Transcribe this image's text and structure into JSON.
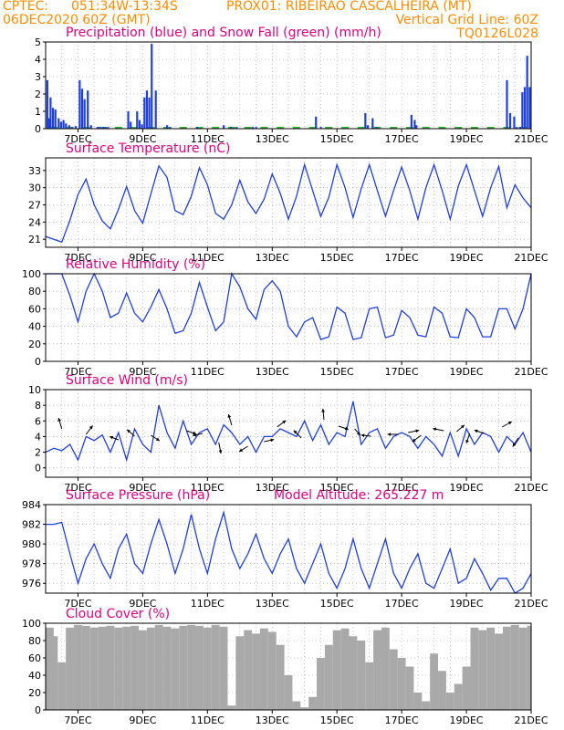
{
  "header": {
    "line1_left": "CPTEC:",
    "line1_coords": "051:34W-13:34S",
    "line1_station": "PROX01: RIBEIRAO CASCALHEIRA (MT)",
    "line2_left": "06DEC2020 60Z (GMT)",
    "line2_right": "Vertical Grid Line: 60Z",
    "line3_right": "TQ0126L028"
  },
  "colors": {
    "header": "#ff8c00",
    "title": "#e0007c",
    "line": "#1f3fe0",
    "snow": "#22aa22",
    "cloud": "#a9a9a9",
    "grid": "#999999"
  },
  "chart_data": [
    {
      "id": "precip",
      "type": "bar",
      "title": "Precipitation (blue) and Snow Fall (green) (mm/h)",
      "ylim": [
        0,
        5
      ],
      "yticks": [
        0,
        1,
        2,
        3,
        4,
        5
      ],
      "xticks": [
        "7DEC",
        "9DEC",
        "11DEC",
        "13DEC",
        "15DEC",
        "17DEC",
        "19DEC",
        "21DEC"
      ],
      "series": [
        {
          "name": "Precipitation",
          "color": "blue",
          "x": [
            0.1,
            0.2,
            0.3,
            0.45,
            0.6,
            0.8,
            0.95,
            1.1,
            1.25,
            1.45,
            1.65,
            1.85,
            2.1,
            2.25,
            2.4,
            2.6,
            2.8,
            3.2,
            3.35,
            3.55,
            3.7,
            3.85,
            5.1,
            5.25,
            5.65,
            5.8,
            5.95,
            6.1,
            6.25,
            6.4,
            6.55,
            6.8,
            7.5,
            7.7,
            9.35,
            11.0,
            11.45,
            11.8,
            12.8,
            13.0,
            16.7,
            17.0,
            19.75,
            19.9,
            20.2,
            20.45,
            22.6,
            22.8,
            22.9,
            28.5,
            28.7,
            28.95,
            29.1,
            29.3,
            29.45,
            29.6,
            29.75,
            29.9
          ],
          "y": [
            2.8,
            0.6,
            1.8,
            1.2,
            1.1,
            0.6,
            0.4,
            0.5,
            0.3,
            0.2,
            0.1,
            0.15,
            2.8,
            2.3,
            1.7,
            2.2,
            0.2,
            0.1,
            0.1,
            0.1,
            0.1,
            0.1,
            1.0,
            0.4,
            1.0,
            0.5,
            0.25,
            1.8,
            2.2,
            1.8,
            4.9,
            2.2,
            0.2,
            0.1,
            0.1,
            0.2,
            0.1,
            0.1,
            0.1,
            0.1,
            0.7,
            0.1,
            0.9,
            0.2,
            0.6,
            0.1,
            0.8,
            0.5,
            0.2,
            2.8,
            0.9,
            0.7,
            0.1,
            0.1,
            2.1,
            2.4,
            4.2,
            2.4
          ]
        },
        {
          "name": "Snow Fall",
          "color": "green",
          "x": [
            0.5,
            1.5,
            2.5,
            3.5,
            4.5,
            5.5,
            6.5,
            7.5,
            8.5,
            9.5,
            10.5,
            11.5,
            12.5,
            13.5,
            14.5,
            15.5,
            16.5,
            17.5,
            18.5,
            19.5,
            20.5,
            21.5,
            22.5,
            23.5,
            24.5,
            25.5,
            26.5,
            27.5,
            28.5,
            29.5
          ],
          "y": [
            0.1,
            0.1,
            0.1,
            0.1,
            0.1,
            0.1,
            0.1,
            0.1,
            0.1,
            0.1,
            0.1,
            0.1,
            0.1,
            0.1,
            0.1,
            0.1,
            0.1,
            0.1,
            0.1,
            0.1,
            0.1,
            0.1,
            0.1,
            0.1,
            0.1,
            0.1,
            0.1,
            0.1,
            0.1,
            0.1
          ]
        }
      ]
    },
    {
      "id": "temp",
      "type": "line",
      "title": "Surface Temperature (nC)",
      "ylim": [
        19.6,
        35.2
      ],
      "yticks": [
        21,
        24,
        27,
        30,
        33
      ],
      "xticks": [
        "7DEC",
        "9DEC",
        "11DEC",
        "13DEC",
        "15DEC",
        "17DEC",
        "19DEC",
        "21DEC"
      ],
      "x": [
        0,
        0.5,
        1,
        1.5,
        2,
        2.5,
        3,
        3.5,
        4,
        4.5,
        5,
        5.5,
        6,
        6.5,
        7,
        7.5,
        8,
        8.5,
        9,
        9.5,
        10,
        10.5,
        11,
        11.5,
        12,
        12.5,
        13,
        13.5,
        14,
        14.5,
        15,
        15.5,
        16,
        16.5,
        17,
        17.5,
        18,
        18.5,
        19,
        19.5,
        20,
        20.5,
        21,
        21.5,
        22,
        22.5,
        23,
        23.5,
        24,
        24.5,
        25,
        25.5,
        26,
        26.5,
        27,
        27.5,
        28,
        28.5,
        29,
        29.5,
        30
      ],
      "y": [
        21.5,
        21.0,
        20.5,
        24.3,
        28.8,
        31.5,
        27.0,
        24.2,
        22.8,
        26.2,
        30.2,
        26.0,
        23.8,
        28.9,
        33.8,
        31.8,
        26.0,
        25.3,
        28.5,
        33.5,
        30.5,
        25.5,
        24.5,
        27.0,
        31.3,
        27.5,
        25.5,
        28.0,
        32.4,
        29.0,
        24.5,
        28.5,
        34.0,
        29.5,
        25.0,
        28.3,
        34.0,
        30.0,
        24.8,
        29.8,
        34.0,
        29.5,
        25.0,
        29.5,
        33.6,
        29.5,
        24.5,
        30.0,
        34.0,
        29.5,
        24.5,
        30.3,
        34.0,
        29.5,
        25.0,
        30.0,
        33.7,
        26.5,
        30.5,
        28.2,
        26.5
      ]
    },
    {
      "id": "rh",
      "type": "line",
      "title": "Relative Humidity (%)",
      "ylim": [
        0,
        100
      ],
      "yticks": [
        0,
        20,
        40,
        60,
        80,
        100
      ],
      "xticks": [
        "7DEC",
        "9DEC",
        "11DEC",
        "13DEC",
        "15DEC",
        "17DEC",
        "19DEC",
        "21DEC"
      ],
      "x": [
        0,
        0.5,
        1,
        1.5,
        2,
        2.5,
        3,
        3.5,
        4,
        4.5,
        5,
        5.5,
        6,
        6.5,
        7,
        7.5,
        8,
        8.5,
        9,
        9.5,
        10,
        10.5,
        11,
        11.5,
        12,
        12.5,
        13,
        13.5,
        14,
        14.5,
        15,
        15.5,
        16,
        16.5,
        17,
        17.5,
        18,
        18.5,
        19,
        19.5,
        20,
        20.5,
        21,
        21.5,
        22,
        22.5,
        23,
        23.5,
        24,
        24.5,
        25,
        25.5,
        26,
        26.5,
        27,
        27.5,
        28,
        28.5,
        29,
        29.5,
        30
      ],
      "y": [
        100,
        100,
        100,
        75,
        45,
        80,
        100,
        80,
        50,
        55,
        78,
        55,
        45,
        62,
        82,
        60,
        32,
        35,
        55,
        90,
        62,
        35,
        45,
        100,
        85,
        60,
        48,
        82,
        92,
        80,
        40,
        28,
        45,
        50,
        25,
        28,
        62,
        55,
        25,
        27,
        60,
        62,
        27,
        30,
        58,
        50,
        30,
        28,
        62,
        55,
        28,
        27,
        60,
        50,
        28,
        28,
        60,
        60,
        37,
        60,
        100
      ]
    },
    {
      "id": "wind",
      "type": "line",
      "title": "Surface Wind (m/s)",
      "ylim": [
        -1.2,
        10
      ],
      "yticks": [
        0,
        2,
        4,
        6,
        8,
        10
      ],
      "xticks": [
        "7DEC",
        "9DEC",
        "11DEC",
        "13DEC",
        "15DEC",
        "17DEC",
        "19DEC",
        "21DEC"
      ],
      "x": [
        0,
        0.5,
        1,
        1.5,
        2,
        2.5,
        3,
        3.5,
        4,
        4.5,
        5,
        5.5,
        6,
        6.5,
        7,
        7.5,
        8,
        8.5,
        9,
        9.5,
        10,
        10.5,
        11,
        11.5,
        12,
        12.5,
        13,
        13.5,
        14,
        14.5,
        15,
        15.5,
        16,
        16.5,
        17,
        17.5,
        18,
        18.5,
        19,
        19.5,
        20,
        20.5,
        21,
        21.5,
        22,
        22.5,
        23,
        23.5,
        24,
        24.5,
        25,
        25.5,
        26,
        26.5,
        27,
        27.5,
        28,
        28.5,
        29,
        29.5,
        30
      ],
      "y": [
        2.0,
        2.5,
        2.2,
        3.0,
        1.0,
        4.0,
        3.5,
        4.2,
        2.0,
        4.5,
        1.0,
        5.0,
        3.0,
        2.0,
        8.0,
        4.5,
        2.5,
        6.0,
        3.0,
        4.5,
        5.0,
        3.0,
        5.5,
        4.5,
        3.0,
        4.0,
        2.0,
        4.0,
        4.0,
        5.0,
        4.5,
        4.0,
        6.0,
        3.5,
        5.5,
        3.0,
        4.5,
        4.0,
        8.5,
        3.0,
        4.5,
        5.0,
        2.5,
        4.0,
        4.5,
        4.0,
        2.5,
        4.0,
        3.0,
        1.5,
        4.5,
        1.5,
        5.0,
        3.0,
        4.5,
        4.0,
        2.0,
        4.0,
        3.0,
        4.5,
        2.0
      ]
    },
    {
      "id": "pressure",
      "type": "line",
      "title": "Surface Pressure (hPa)",
      "annotation": "Model Altitude: 265.227 m",
      "ylim": [
        975,
        984
      ],
      "yticks": [
        976,
        978,
        980,
        982,
        984
      ],
      "xticks": [
        "7DEC",
        "9DEC",
        "11DEC",
        "13DEC",
        "15DEC",
        "17DEC",
        "19DEC",
        "21DEC"
      ],
      "x": [
        0,
        0.5,
        1,
        1.5,
        2,
        2.5,
        3,
        3.5,
        4,
        4.5,
        5,
        5.5,
        6,
        6.5,
        7,
        7.5,
        8,
        8.5,
        9,
        9.5,
        10,
        10.5,
        11,
        11.5,
        12,
        12.5,
        13,
        13.5,
        14,
        14.5,
        15,
        15.5,
        16,
        16.5,
        17,
        17.5,
        18,
        18.5,
        19,
        19.5,
        20,
        20.5,
        21,
        21.5,
        22,
        22.5,
        23,
        23.5,
        24,
        24.5,
        25,
        25.5,
        26,
        26.5,
        27,
        27.5,
        28,
        28.5,
        29,
        29.5,
        30
      ],
      "y": [
        982.0,
        982.0,
        982.2,
        979.0,
        976.0,
        978.5,
        980.0,
        978.0,
        976.5,
        979.5,
        981.0,
        978.0,
        977.0,
        980.0,
        982.5,
        980.0,
        977.0,
        979.5,
        983.0,
        979.5,
        977.0,
        980.5,
        983.2,
        979.5,
        977.5,
        979.0,
        981.0,
        978.5,
        977.0,
        979.0,
        980.5,
        977.5,
        976.0,
        978.0,
        980.0,
        977.0,
        975.5,
        977.5,
        980.5,
        977.5,
        975.5,
        978.0,
        980.5,
        977.0,
        975.5,
        977.5,
        979.0,
        976.0,
        975.5,
        977.5,
        979.5,
        976.0,
        976.5,
        978.5,
        977.0,
        975.3,
        976.5,
        976.5,
        975.0,
        975.5,
        977.0
      ]
    },
    {
      "id": "cloud",
      "type": "bar",
      "title": "Cloud Cover (%)",
      "ylim": [
        0,
        100
      ],
      "yticks": [
        0,
        20,
        40,
        60,
        80,
        100
      ],
      "xticks": [
        "7DEC",
        "9DEC",
        "11DEC",
        "13DEC",
        "15DEC",
        "17DEC",
        "19DEC",
        "21DEC"
      ],
      "x": [
        0,
        0.5,
        1,
        1.5,
        2,
        2.5,
        3,
        3.5,
        4,
        4.5,
        5,
        5.5,
        6,
        6.5,
        7,
        7.5,
        8,
        8.5,
        9,
        9.5,
        10,
        10.5,
        11,
        11.5,
        12,
        12.5,
        13,
        13.5,
        14,
        14.5,
        15,
        15.5,
        16,
        16.5,
        17,
        17.5,
        18,
        18.5,
        19,
        19.5,
        20,
        20.5,
        21,
        21.5,
        22,
        22.5,
        23,
        23.5,
        24,
        24.5,
        25,
        25.5,
        26,
        26.5,
        27,
        27.5,
        28,
        28.5,
        29,
        29.5,
        30
      ],
      "values": [
        95,
        85,
        55,
        95,
        98,
        97,
        95,
        96,
        97,
        95,
        96,
        97,
        92,
        95,
        98,
        96,
        94,
        97,
        98,
        97,
        95,
        98,
        96,
        5,
        85,
        92,
        88,
        94,
        90,
        75,
        40,
        10,
        3,
        15,
        60,
        75,
        92,
        94,
        85,
        80,
        55,
        92,
        95,
        70,
        60,
        50,
        20,
        10,
        65,
        45,
        20,
        30,
        50,
        95,
        92,
        95,
        88,
        96,
        98,
        95,
        97
      ]
    }
  ]
}
